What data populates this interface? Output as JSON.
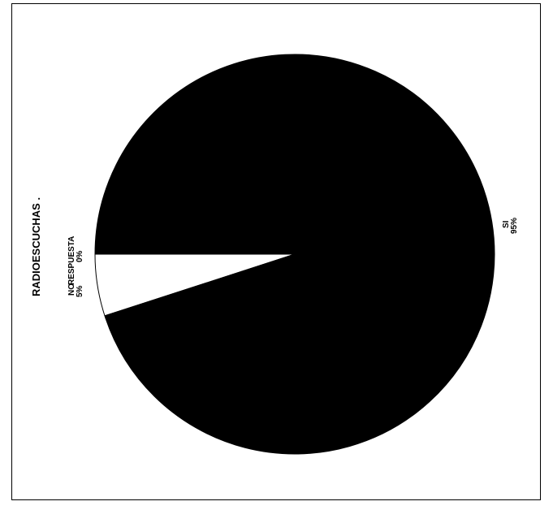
{
  "chart_data": {
    "type": "pie",
    "title": "RADIOESCUCHAS .",
    "slices": [
      {
        "key": "no",
        "label": "NO",
        "percent_label": "5%",
        "value": 5,
        "color": "#ffffff"
      },
      {
        "key": "respuesta",
        "label": "RESPUESTA",
        "percent_label": "0%",
        "value": 0.2,
        "color": "#000000"
      },
      {
        "key": "si",
        "label": "SI",
        "percent_label": "95%",
        "value": 95,
        "color": "#000000"
      }
    ]
  }
}
